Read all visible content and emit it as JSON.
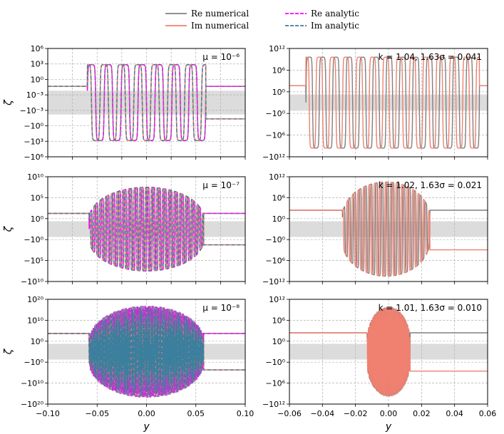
{
  "legend": {
    "entries": [
      {
        "label": "Re numerical",
        "color": "#808080",
        "dash": "solid"
      },
      {
        "label": "Im numerical",
        "color": "#f08070",
        "dash": "solid"
      },
      {
        "label": "Re analytic",
        "color": "#ff00ff",
        "dash": "dashed"
      },
      {
        "label": "Im analytic",
        "color": "#3a7f9e",
        "dash": "dashed"
      }
    ]
  },
  "chart_data": [
    {
      "type": "line",
      "panel": "row1-left",
      "annotation": "μ = 10⁻⁶",
      "ylabel": "ζ",
      "xlabel": "",
      "xlim": [
        -0.1,
        0.1
      ],
      "xticks": [
        "",
        "",
        "",
        "",
        "",
        "",
        "",
        "",
        ""
      ],
      "yticks": [
        "10⁶",
        "10³",
        "10⁰",
        "10⁻³",
        "−10⁻³",
        "−10⁰",
        "−10³",
        "−10⁶"
      ],
      "series": [
        {
          "name": "Re numerical",
          "style": "osc",
          "nosc": 7,
          "peak": 0.35,
          "env": "flat",
          "support": [
            -0.06,
            0.06
          ],
          "tailL": 0.5,
          "tailR": 0.5,
          "phase": 0
        },
        {
          "name": "Im numerical",
          "style": "osc",
          "nosc": 7,
          "peak": 0.35,
          "env": "flat",
          "support": [
            -0.06,
            0.06
          ],
          "tailL": 0.5,
          "tailR": -0.5,
          "phase": 0.5
        }
      ]
    },
    {
      "type": "line",
      "panel": "row1-right",
      "annotation": "k = 1.04, 1.63σ = 0.041",
      "ylabel": "",
      "xlabel": "",
      "xlim": [
        -0.06,
        0.06
      ],
      "xticks": [
        "",
        "",
        "",
        "",
        "",
        "",
        ""
      ],
      "yticks": [
        "10¹²",
        "10⁶",
        "10⁰",
        "−10⁰",
        "−10⁶",
        "−10¹²"
      ],
      "series": [
        {
          "name": "Re numerical",
          "style": "osc",
          "nosc": 13,
          "peak": 0.42,
          "env": "flat",
          "support": [
            -0.05,
            0.055
          ],
          "tailL": 0.52,
          "tailR": 0.52,
          "phase": 0
        },
        {
          "name": "Im numerical",
          "style": "osc",
          "nosc": 13,
          "peak": 0.42,
          "env": "flat",
          "support": [
            -0.05,
            0.055
          ],
          "tailL": 0.52,
          "tailR": 0.52,
          "phase": 0.5
        }
      ]
    },
    {
      "type": "line",
      "panel": "row2-left",
      "annotation": "μ = 10⁻⁷",
      "ylabel": "ζ",
      "xlabel": "",
      "xlim": [
        -0.1,
        0.1
      ],
      "xticks": [
        "",
        "",
        "",
        "",
        "",
        "",
        "",
        "",
        ""
      ],
      "yticks": [
        "10¹⁰",
        "10⁵",
        "10⁰",
        "−10⁰",
        "−10⁵",
        "−10¹⁰"
      ],
      "series": [
        {
          "name": "Re numerical",
          "style": "osc",
          "nosc": 20,
          "peak": 0.4,
          "env": "round",
          "support": [
            -0.058,
            0.058
          ],
          "tailL": 0.5,
          "tailR": 0.5,
          "phase": 0
        },
        {
          "name": "Im numerical",
          "style": "osc",
          "nosc": 20,
          "peak": 0.4,
          "env": "round",
          "support": [
            -0.058,
            0.058
          ],
          "tailL": 0.5,
          "tailR": -0.5,
          "phase": 0.5
        }
      ]
    },
    {
      "type": "line",
      "panel": "row2-right",
      "annotation": "k = 1.02, 1.63σ = 0.021",
      "ylabel": "",
      "xlabel": "",
      "xlim": [
        -0.06,
        0.06
      ],
      "xticks": [
        "",
        "",
        "",
        "",
        "",
        "",
        ""
      ],
      "yticks": [
        "10¹²",
        "10⁶",
        "10⁰",
        "−10⁰",
        "−10⁶",
        "−10¹²"
      ],
      "series": [
        {
          "name": "Re numerical",
          "style": "osc",
          "nosc": 16,
          "peak": 0.45,
          "env": "round",
          "support": [
            -0.028,
            0.025
          ],
          "tailL": 0.6,
          "tailR": 0.6,
          "phase": 0
        },
        {
          "name": "Im numerical",
          "style": "osc",
          "nosc": 16,
          "peak": 0.45,
          "env": "round",
          "support": [
            -0.028,
            0.025
          ],
          "tailL": 0.6,
          "tailR": -0.66,
          "phase": 0.5
        }
      ]
    },
    {
      "type": "line",
      "panel": "row3-left",
      "annotation": "μ = 10⁻⁸",
      "ylabel": "ζ",
      "xlabel": "y",
      "xlim": [
        -0.1,
        0.1
      ],
      "xticks": [
        "−0.10",
        "−0.05",
        "0.00",
        "0.05",
        "0.10"
      ],
      "yticks": [
        "10²⁰",
        "10¹⁰",
        "10⁰",
        "−10⁰",
        "−10¹⁰",
        "−10²⁰"
      ],
      "series": [
        {
          "name": "Re numerical",
          "style": "fill",
          "nosc": 80,
          "peak": 0.44,
          "env": "round",
          "support": [
            -0.058,
            0.058
          ],
          "tailL": 0.58,
          "tailR": 0.58,
          "phase": 0
        },
        {
          "name": "Im numerical",
          "style": "fill",
          "nosc": 80,
          "peak": 0.44,
          "env": "round",
          "support": [
            -0.058,
            0.058
          ],
          "tailL": 0.58,
          "tailR": -0.58,
          "phase": 0.5
        }
      ]
    },
    {
      "type": "line",
      "panel": "row3-right",
      "annotation": "k = 1.01, 1.63σ = 0.010",
      "ylabel": "",
      "xlabel": "y",
      "xlim": [
        -0.06,
        0.06
      ],
      "xticks": [
        "−0.06",
        "−0.04",
        "−0.02",
        "0.00",
        "0.02",
        "0.04",
        "0.06"
      ],
      "yticks": [
        "10¹²",
        "10⁶",
        "10⁰",
        "−10⁰",
        "−10⁶",
        "−10¹²"
      ],
      "series": [
        {
          "name": "Re numerical",
          "style": "osc",
          "nosc": 30,
          "peak": 0.42,
          "env": "round",
          "support": [
            -0.013,
            0.013
          ],
          "tailL": 0.6,
          "tailR": 0.6,
          "phase": 0
        },
        {
          "name": "Im numerical",
          "style": "osc",
          "nosc": 30,
          "peak": 0.42,
          "env": "round",
          "support": [
            -0.013,
            0.013
          ],
          "tailL": 0.6,
          "tailR": -0.62,
          "phase": 0.5
        }
      ]
    }
  ]
}
